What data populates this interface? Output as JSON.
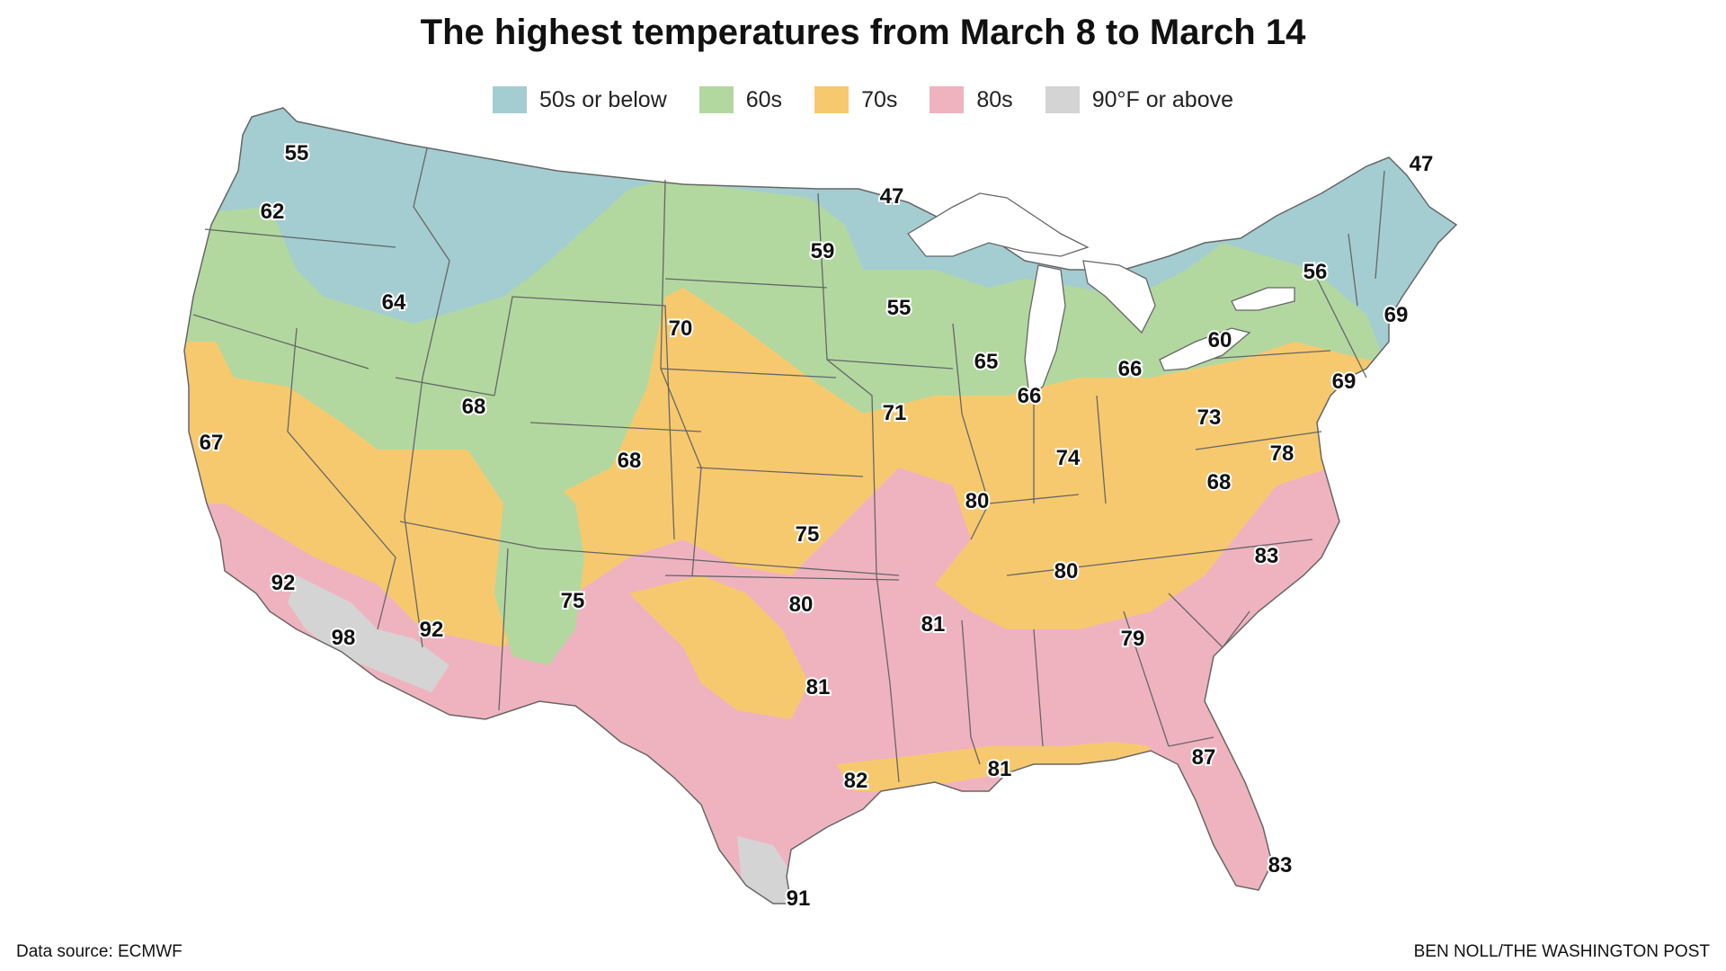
{
  "title": "The highest temperatures from March 8 to March 14",
  "legend": [
    {
      "label": "50s or below",
      "color": "#a3cdd1"
    },
    {
      "label": "60s",
      "color": "#b2d8a0"
    },
    {
      "label": "70s",
      "color": "#f7c96e"
    },
    {
      "label": "80s",
      "color": "#efb3bf"
    },
    {
      "label": "90°F or above",
      "color": "#d4d4d4"
    }
  ],
  "colors": {
    "outline": "#666666",
    "lakes": "#ffffff"
  },
  "temperature_labels": [
    "55",
    "62",
    "64",
    "67",
    "92",
    "98",
    "92",
    "68",
    "68",
    "75",
    "70",
    "59",
    "47",
    "55",
    "65",
    "71",
    "75",
    "80",
    "81",
    "81",
    "82",
    "91",
    "80",
    "74",
    "66",
    "66",
    "60",
    "73",
    "78",
    "68",
    "80",
    "83",
    "79",
    "81",
    "87",
    "83",
    "69",
    "69",
    "56",
    "47"
  ],
  "footer": {
    "source": "Data source: ECMWF",
    "credit": "BEN NOLL/THE WASHINGTON POST"
  }
}
